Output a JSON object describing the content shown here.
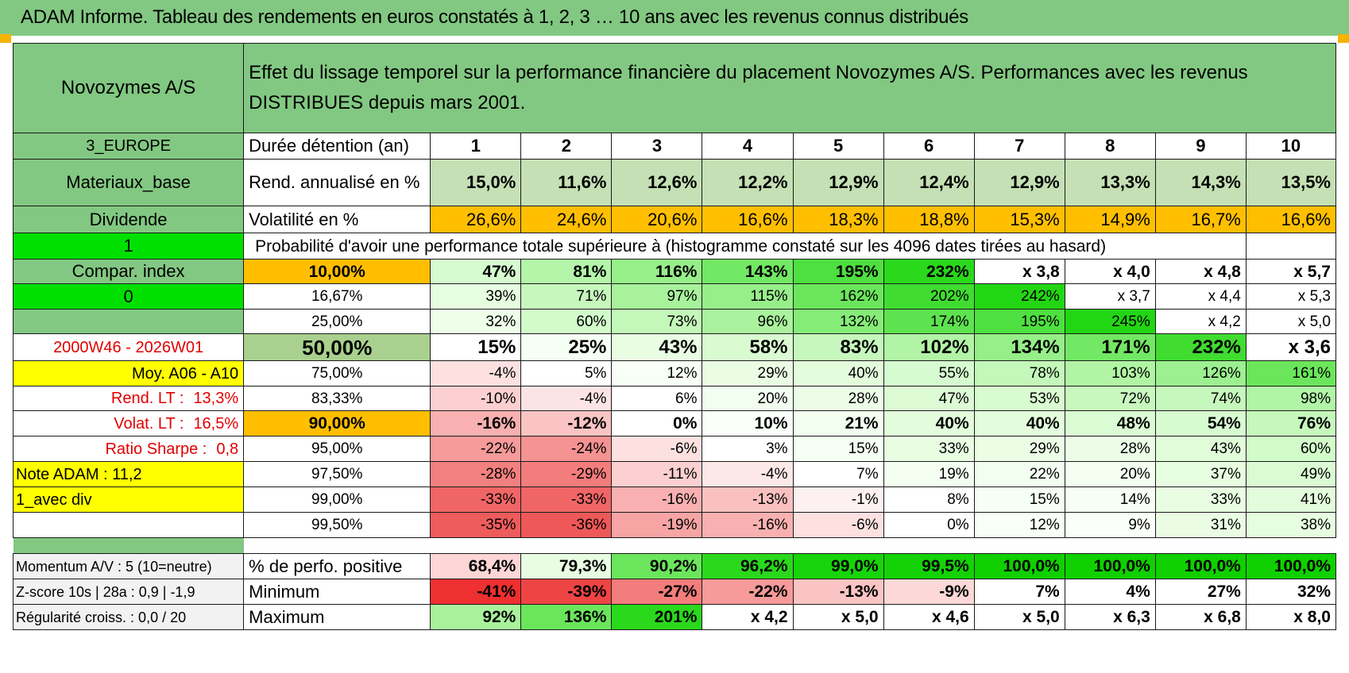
{
  "page_title": "ADAM Informe. Tableau des rendements en euros constatés à 1, 2, 3 … 10 ans avec les revenus connus distribués",
  "header": {
    "company": "Novozymes A/S",
    "title": "Effet du lissage temporel sur la performance financière du placement Novozymes A/S. Performances avec les revenus DISTRIBUES depuis mars 2001."
  },
  "left": {
    "region": "3_EUROPE",
    "sector": "Materiaux_base",
    "type": "Dividende",
    "one": "1",
    "compar": "Compar. index",
    "zero": "0",
    "period": "2000W46 - 2026W01",
    "moy": "Moy. A06 - A10",
    "rend_lt_label": "Rend. LT :",
    "rend_lt_value": "13,3%",
    "volat_lt_label": "Volat. LT :",
    "volat_lt_value": "16,5%",
    "sharpe_label": "Ratio Sharpe :",
    "sharpe_value": "0,8",
    "note": "Note ADAM : 11,2",
    "avec_div": "1_avec div",
    "momentum": "Momentum A/V : 5 (10=neutre)",
    "zscore": "Z-score 10s | 28a : 0,9 | -1,9",
    "regularite": "Régularité croiss. : 0,0 / 20"
  },
  "labels": {
    "duree": "Durée détention (an)",
    "rend": "Rend. annualisé en %",
    "vol": "Volatilité en %",
    "proba": "Probabilité d'avoir une performance totale supérieure à (histogramme constaté sur les 4096 dates tirées au hasard)",
    "pos": "% de perfo. positive",
    "min": "Minimum",
    "max": "Maximum"
  },
  "years": [
    "1",
    "2",
    "3",
    "4",
    "5",
    "6",
    "7",
    "8",
    "9",
    "10"
  ],
  "rend": [
    "15,0%",
    "11,6%",
    "12,6%",
    "12,2%",
    "12,9%",
    "12,4%",
    "12,9%",
    "13,3%",
    "14,3%",
    "13,5%"
  ],
  "vol": [
    "26,6%",
    "24,6%",
    "20,6%",
    "16,6%",
    "18,3%",
    "18,8%",
    "15,3%",
    "14,9%",
    "16,7%",
    "16,6%"
  ],
  "vol_colors": [
    "#ffbf00",
    "#ffbf00",
    "#ffbf00",
    "#ffbf00",
    "#ffbf00",
    "#ffbf00",
    "#ffbf00",
    "#ffbf00",
    "#ffbf00",
    "#ffbf00"
  ],
  "pct_rows": [
    {
      "pct": "10,00%",
      "pct_bg": "#ffbf00",
      "bold": true,
      "values": [
        "47%",
        "81%",
        "116%",
        "143%",
        "195%",
        "232%",
        "x 3,8",
        "x 4,0",
        "x 4,8",
        "x 5,7"
      ],
      "colors": [
        "#d6fbd0",
        "#b4f5aa",
        "#97ef8a",
        "#72e864",
        "#4ee040",
        "#2ad81c",
        "#ffffff",
        "#ffffff",
        "#ffffff",
        "#ffffff"
      ]
    },
    {
      "pct": "16,67%",
      "pct_bg": "#ffffff",
      "bold": false,
      "values": [
        "39%",
        "71%",
        "97%",
        "115%",
        "162%",
        "202%",
        "242%",
        "x 3,7",
        "x 4,4",
        "x 5,3"
      ],
      "colors": [
        "#e6fde0",
        "#c6f7bc",
        "#a8f29c",
        "#97ef8a",
        "#6be65c",
        "#40dc30",
        "#22d614",
        "#ffffff",
        "#ffffff",
        "#ffffff"
      ]
    },
    {
      "pct": "25,00%",
      "pct_bg": "#ffffff",
      "bold": false,
      "values": [
        "32%",
        "60%",
        "73%",
        "96%",
        "132%",
        "174%",
        "195%",
        "245%",
        "x 4,2",
        "x 5,0"
      ],
      "colors": [
        "#eefee9",
        "#d2fbca",
        "#c4f7ba",
        "#aaf29e",
        "#86ec78",
        "#5ee350",
        "#4ee040",
        "#22d614",
        "#ffffff",
        "#ffffff"
      ]
    },
    {
      "pct": "50,00%",
      "pct_bg": "#a9d08e",
      "bold": true,
      "big": true,
      "values": [
        "15%",
        "25%",
        "43%",
        "58%",
        "83%",
        "102%",
        "134%",
        "171%",
        "232%",
        "x 3,6"
      ],
      "colors": [
        "#ffffff",
        "#f6fff3",
        "#e8fde2",
        "#dafbd2",
        "#c6f7bc",
        "#b2f4a6",
        "#96ef88",
        "#72e864",
        "#40dc30",
        "#ffffff"
      ]
    },
    {
      "pct": "75,00%",
      "pct_bg": "#ffffff",
      "bold": false,
      "values": [
        "-4%",
        "5%",
        "12%",
        "29%",
        "40%",
        "55%",
        "78%",
        "103%",
        "126%",
        "161%"
      ],
      "colors": [
        "#fde0e0",
        "#ffffff",
        "#f8fff6",
        "#eafde4",
        "#e2fcdc",
        "#d6fbd0",
        "#c4f7ba",
        "#b0f4a4",
        "#9cf090",
        "#6be65c"
      ]
    },
    {
      "pct": "83,33%",
      "pct_bg": "#ffffff",
      "bold": false,
      "values": [
        "-10%",
        "-4%",
        "6%",
        "20%",
        "28%",
        "47%",
        "53%",
        "72%",
        "74%",
        "98%"
      ],
      "colors": [
        "#fcd0d0",
        "#fde4e4",
        "#ffffff",
        "#f2fef0",
        "#ecfde7",
        "#dcfbd5",
        "#d8fbd0",
        "#c8f8be",
        "#c6f7bc",
        "#b2f4a6"
      ]
    },
    {
      "pct": "90,00%",
      "pct_bg": "#ffbf00",
      "bold": true,
      "values": [
        "-16%",
        "-12%",
        "0%",
        "10%",
        "21%",
        "40%",
        "40%",
        "48%",
        "54%",
        "76%"
      ],
      "colors": [
        "#f8b0b0",
        "#fac4c4",
        "#ffffff",
        "#fbfffa",
        "#f2fef0",
        "#e2fcdc",
        "#e2fcdc",
        "#dafbd3",
        "#d6fbd0",
        "#c6f7bc"
      ]
    },
    {
      "pct": "95,00%",
      "pct_bg": "#ffffff",
      "bold": false,
      "values": [
        "-22%",
        "-24%",
        "-6%",
        "3%",
        "15%",
        "33%",
        "29%",
        "28%",
        "43%",
        "60%"
      ],
      "colors": [
        "#f69a9a",
        "#f59292",
        "#fde0e0",
        "#ffffff",
        "#f6fff3",
        "#e8fde2",
        "#ecfde6",
        "#ecfde7",
        "#e0fcd8",
        "#d2fbca"
      ]
    },
    {
      "pct": "97,50%",
      "pct_bg": "#ffffff",
      "bold": false,
      "values": [
        "-28%",
        "-29%",
        "-11%",
        "-4%",
        "7%",
        "19%",
        "22%",
        "20%",
        "37%",
        "49%"
      ],
      "colors": [
        "#f38080",
        "#f37c7c",
        "#fcd0d0",
        "#fde8e8",
        "#ffffff",
        "#f4fef1",
        "#f2fef0",
        "#f4fef1",
        "#e6fde0",
        "#dafbd3"
      ]
    },
    {
      "pct": "99,00%",
      "pct_bg": "#ffffff",
      "bold": false,
      "values": [
        "-33%",
        "-33%",
        "-16%",
        "-13%",
        "-1%",
        "8%",
        "15%",
        "14%",
        "33%",
        "41%"
      ],
      "colors": [
        "#f06666",
        "#f06666",
        "#f8b0b0",
        "#fac0c0",
        "#fdf0f0",
        "#ffffff",
        "#f6fff3",
        "#f7fff4",
        "#e8fde2",
        "#e2fcdc"
      ]
    },
    {
      "pct": "99,50%",
      "pct_bg": "#ffffff",
      "bold": false,
      "values": [
        "-35%",
        "-36%",
        "-19%",
        "-16%",
        "-6%",
        "0%",
        "12%",
        "9%",
        "31%",
        "38%"
      ],
      "colors": [
        "#ee5c5c",
        "#ee5858",
        "#f6a4a4",
        "#f8b0b0",
        "#fde0e0",
        "#ffffff",
        "#f8fff6",
        "#fbfffa",
        "#eafde4",
        "#e6fde0"
      ]
    }
  ],
  "pos": [
    "68,4%",
    "79,3%",
    "90,2%",
    "96,2%",
    "99,0%",
    "99,5%",
    "100,0%",
    "100,0%",
    "100,0%",
    "100,0%"
  ],
  "pos_colors": [
    "#ffd6d6",
    "#e8fde2",
    "#6be65c",
    "#2ad81c",
    "#18d40a",
    "#14d206",
    "#10d000",
    "#10d000",
    "#10d000",
    "#10d000"
  ],
  "min": [
    "-41%",
    "-39%",
    "-27%",
    "-22%",
    "-13%",
    "-9%",
    "7%",
    "4%",
    "27%",
    "32%"
  ],
  "min_colors": [
    "#ee3030",
    "#ef4444",
    "#f37c7c",
    "#f69a9a",
    "#fbc4c4",
    "#fcd8d8",
    "#ffffff",
    "#ffffff",
    "#ffffff",
    "#ffffff"
  ],
  "max": [
    "92%",
    "136%",
    "201%",
    "x 4,2",
    "x 5,0",
    "x 4,6",
    "x 5,0",
    "x 6,3",
    "x 6,8",
    "x 8,0"
  ],
  "max_colors": [
    "#a8f29c",
    "#6be65c",
    "#2ad81c",
    "#ffffff",
    "#ffffff",
    "#ffffff",
    "#ffffff",
    "#ffffff",
    "#ffffff",
    "#ffffff"
  ]
}
